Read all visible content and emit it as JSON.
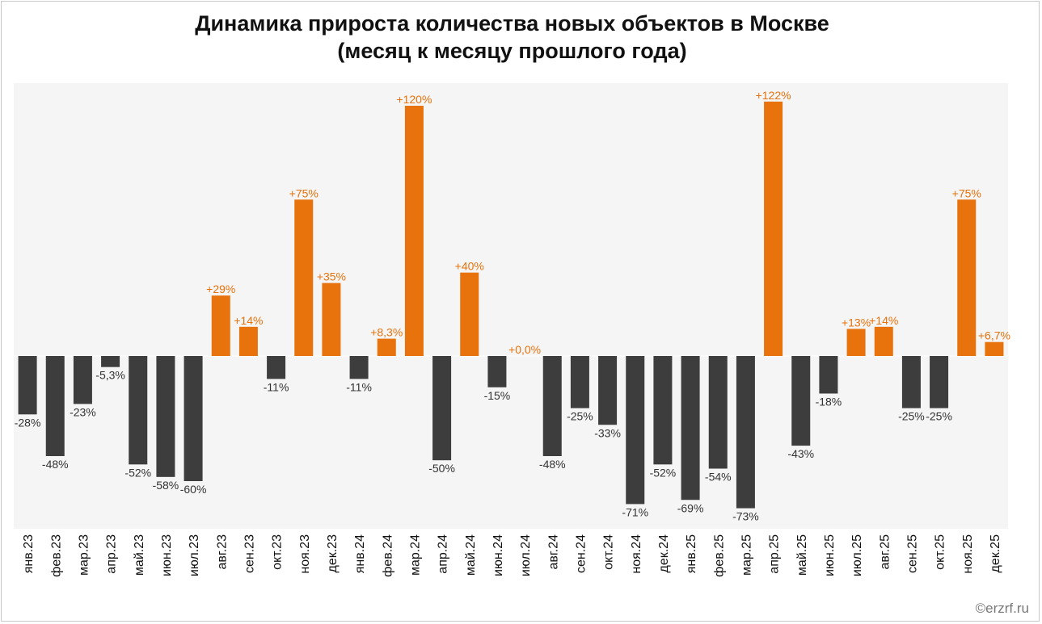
{
  "title_line1": "Динамика прироста количества новых объектов в Москве",
  "title_line2": "(месяц к месяцу прошлого года)",
  "watermark": "©erzrf.ru",
  "colors": {
    "positive": "#e8720c",
    "negative": "#3d3d3d",
    "plot_bg": "#f5f5f5",
    "zero_line": "#ffffff"
  },
  "chart_data": {
    "type": "bar",
    "title": "Динамика прироста количества новых объектов в Москве (месяц к месяцу прошлого года)",
    "xlabel": "",
    "ylabel": "",
    "grid": false,
    "legend": "none",
    "categories": [
      "янв.23",
      "фев.23",
      "мар.23",
      "апр.23",
      "май.23",
      "июн.23",
      "июл.23",
      "авг.23",
      "сен.23",
      "окт.23",
      "ноя.23",
      "дек.23",
      "янв.24",
      "фев.24",
      "мар.24",
      "апр.24",
      "май.24",
      "июн.24",
      "июл.24",
      "авг.24",
      "сен.24",
      "окт.24",
      "ноя.24",
      "дек.24",
      "янв.25",
      "фев.25",
      "мар.25",
      "апр.25",
      "май.25",
      "июн.25",
      "июл.25",
      "авг.25",
      "сен.25",
      "окт.25",
      "ноя.25",
      "дек.25"
    ],
    "values": [
      -28,
      -48,
      -23,
      -5.3,
      -52,
      -58,
      -60,
      29,
      14,
      -11,
      75,
      35,
      -11,
      8.3,
      120,
      -50,
      40,
      -15,
      0.0,
      -48,
      -25,
      -33,
      -71,
      -52,
      -69,
      -54,
      -73,
      122,
      -43,
      -18,
      13,
      14,
      -25,
      -25,
      75,
      6.7
    ],
    "labels": [
      "-28%",
      "-48%",
      "-23%",
      "-5,3%",
      "-52%",
      "-58%",
      "-60%",
      "+29%",
      "+14%",
      "-11%",
      "+75%",
      "+35%",
      "-11%",
      "+8,3%",
      "+120%",
      "-50%",
      "+40%",
      "-15%",
      "+0,0%",
      "-48%",
      "-25%",
      "-33%",
      "-71%",
      "-52%",
      "-69%",
      "-54%",
      "-73%",
      "+122%",
      "-43%",
      "-18%",
      "+13%",
      "+14%",
      "-25%",
      "-25%",
      "+75%",
      "+6,7%"
    ],
    "ylim": [
      -82,
      128
    ]
  }
}
